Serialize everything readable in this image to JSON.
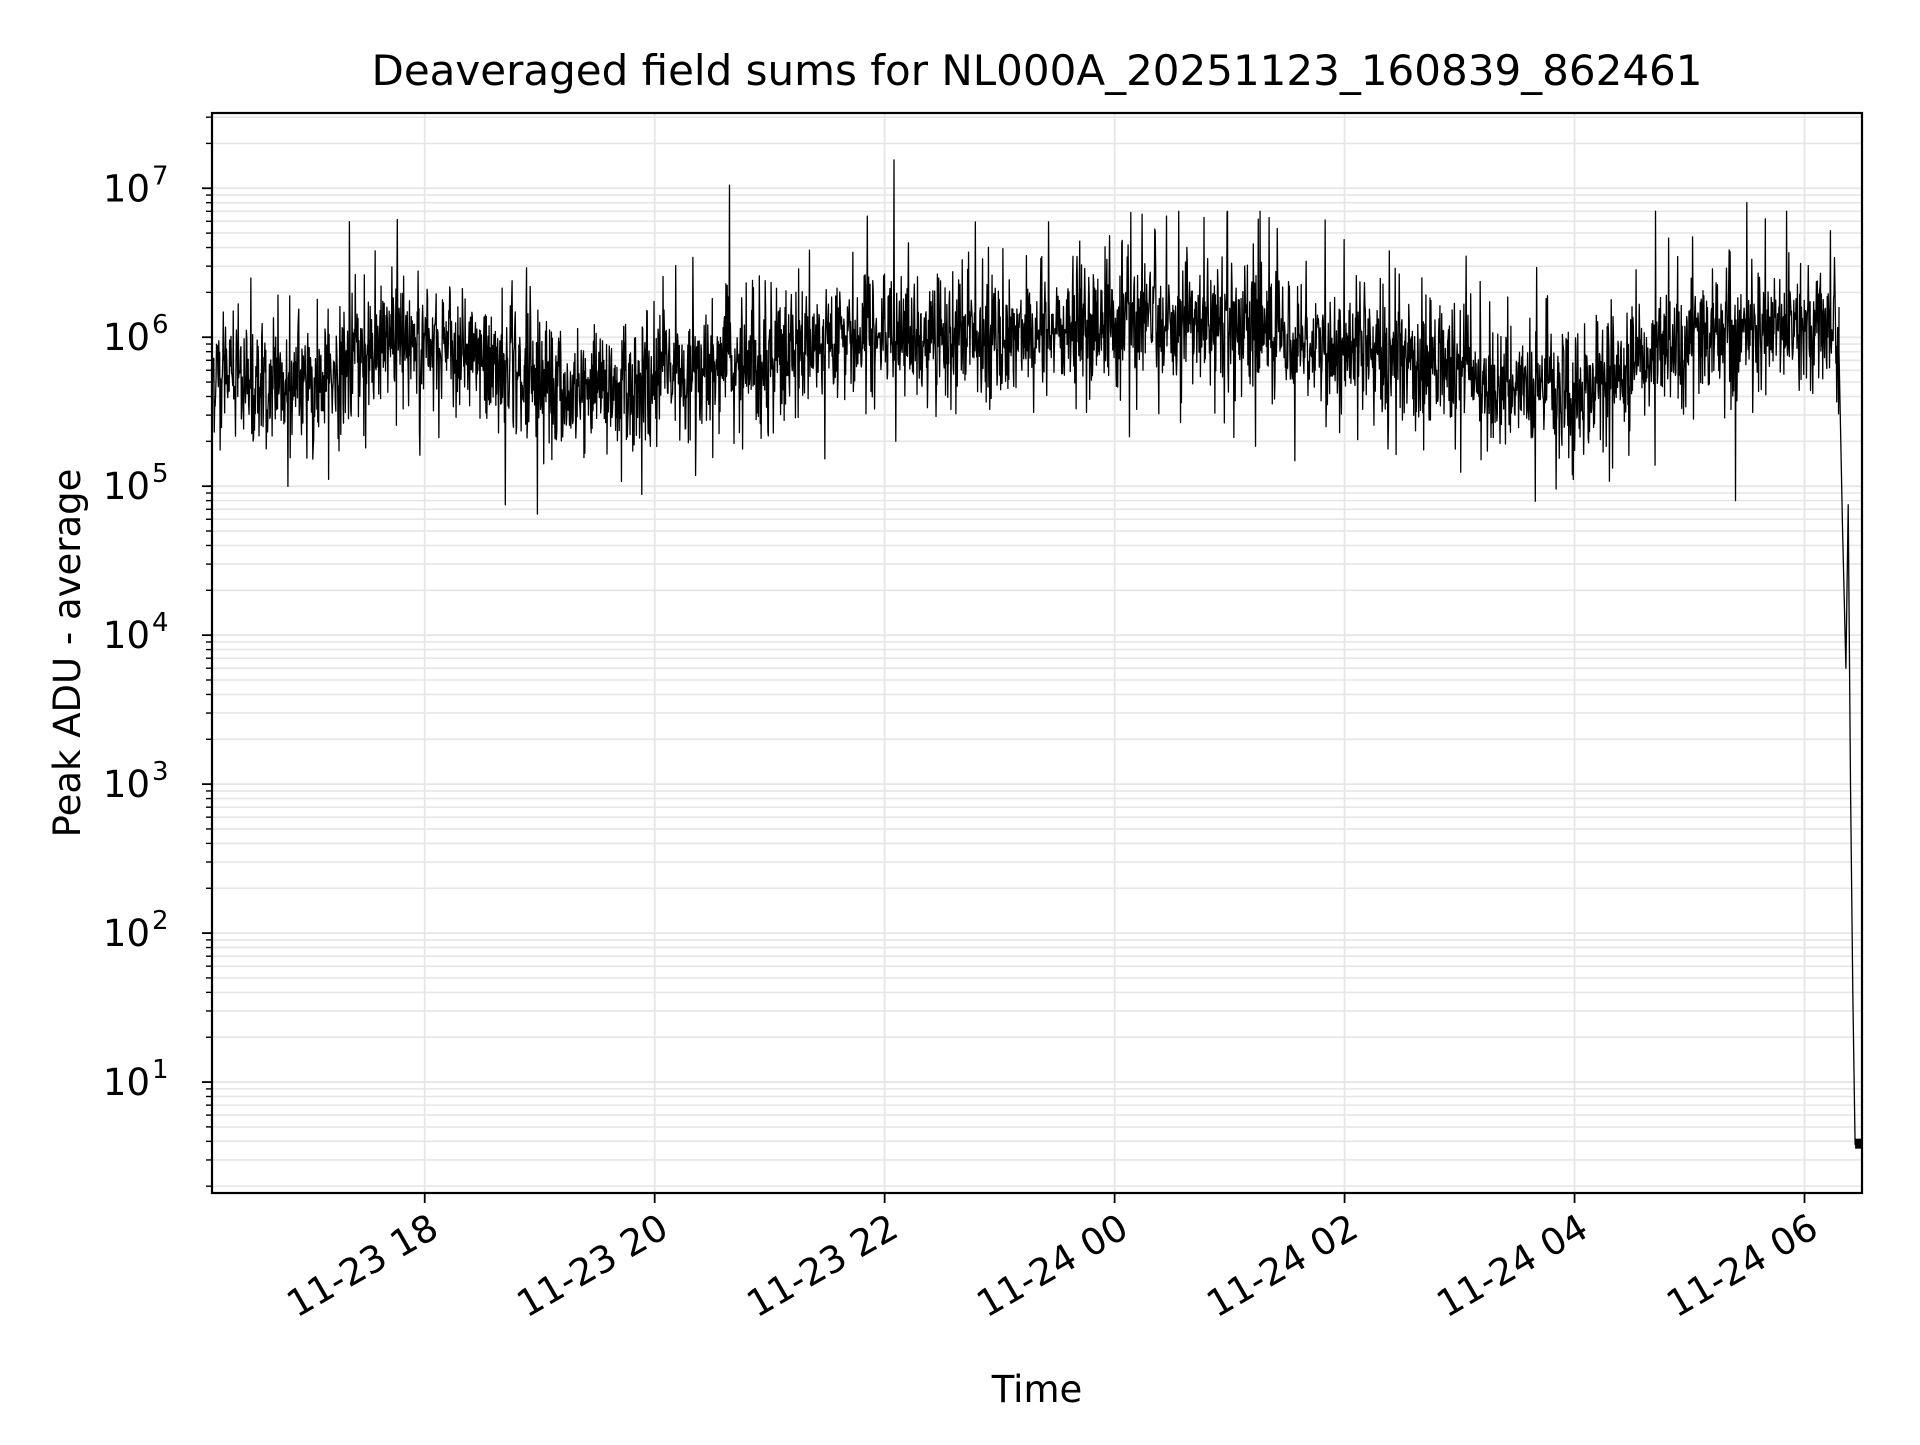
{
  "chart_data": {
    "type": "line",
    "title": "Deaveraged field sums for NL000A_20251123_160839_862461",
    "xlabel": "Time",
    "ylabel": "Peak ADU - average",
    "yscale": "log",
    "ylim": [
      1.8,
      32000000
    ],
    "xlim_hours": [
      16.15,
      6.5
    ],
    "x_tick_labels": [
      "11-23 18",
      "11-23 20",
      "11-23 22",
      "11-24 00",
      "11-24 02",
      "11-24 04",
      "11-24 06"
    ],
    "x_tick_hours": [
      18,
      20,
      22,
      24,
      26,
      28,
      30
    ],
    "y_tick_base": "10",
    "y_tick_exponents": [
      "1",
      "2",
      "3",
      "4",
      "5",
      "6",
      "7"
    ],
    "grid": true,
    "line_color": "#000000",
    "grid_color": "#e6e6e6",
    "series": [
      {
        "name": "Peak ADU - average",
        "x_start_hours": 16.15,
        "x_end_hours": 30.5,
        "typical_level": 700000,
        "envelope": [
          {
            "hour": 16.15,
            "median": 600000
          },
          {
            "hour": 17.0,
            "median": 450000
          },
          {
            "hour": 17.8,
            "median": 1000000
          },
          {
            "hour": 18.5,
            "median": 650000
          },
          {
            "hour": 19.5,
            "median": 400000
          },
          {
            "hour": 20.5,
            "median": 600000
          },
          {
            "hour": 22.0,
            "median": 1000000
          },
          {
            "hour": 23.5,
            "median": 1100000
          },
          {
            "hour": 25.0,
            "median": 1300000
          },
          {
            "hour": 26.5,
            "median": 700000
          },
          {
            "hour": 28.0,
            "median": 400000
          },
          {
            "hour": 29.0,
            "median": 1000000
          },
          {
            "hour": 30.3,
            "median": 1200000
          }
        ],
        "spikes": [
          {
            "hour": 20.65,
            "value": 10500000
          },
          {
            "hour": 22.08,
            "value": 15500000
          },
          {
            "hour": 21.85,
            "value": 6500000
          },
          {
            "hour": 25.25,
            "value": 6200000
          },
          {
            "hour": 29.5,
            "value": 8000000
          },
          {
            "hour": 24.45,
            "value": 6500000
          },
          {
            "hour": 18.7,
            "value": 75000
          },
          {
            "hour": 18.98,
            "value": 65000
          },
          {
            "hour": 29.4,
            "value": 80000
          }
        ],
        "tail": [
          {
            "hour": 30.3,
            "value": 800000
          },
          {
            "hour": 30.33,
            "value": 55000
          },
          {
            "hour": 30.36,
            "value": 6000
          },
          {
            "hour": 30.38,
            "value": 75000
          },
          {
            "hour": 30.4,
            "value": 1000
          },
          {
            "hour": 30.42,
            "value": 40
          },
          {
            "hour": 30.44,
            "value": 3.8
          },
          {
            "hour": 30.5,
            "value": 3.8
          }
        ]
      }
    ]
  }
}
